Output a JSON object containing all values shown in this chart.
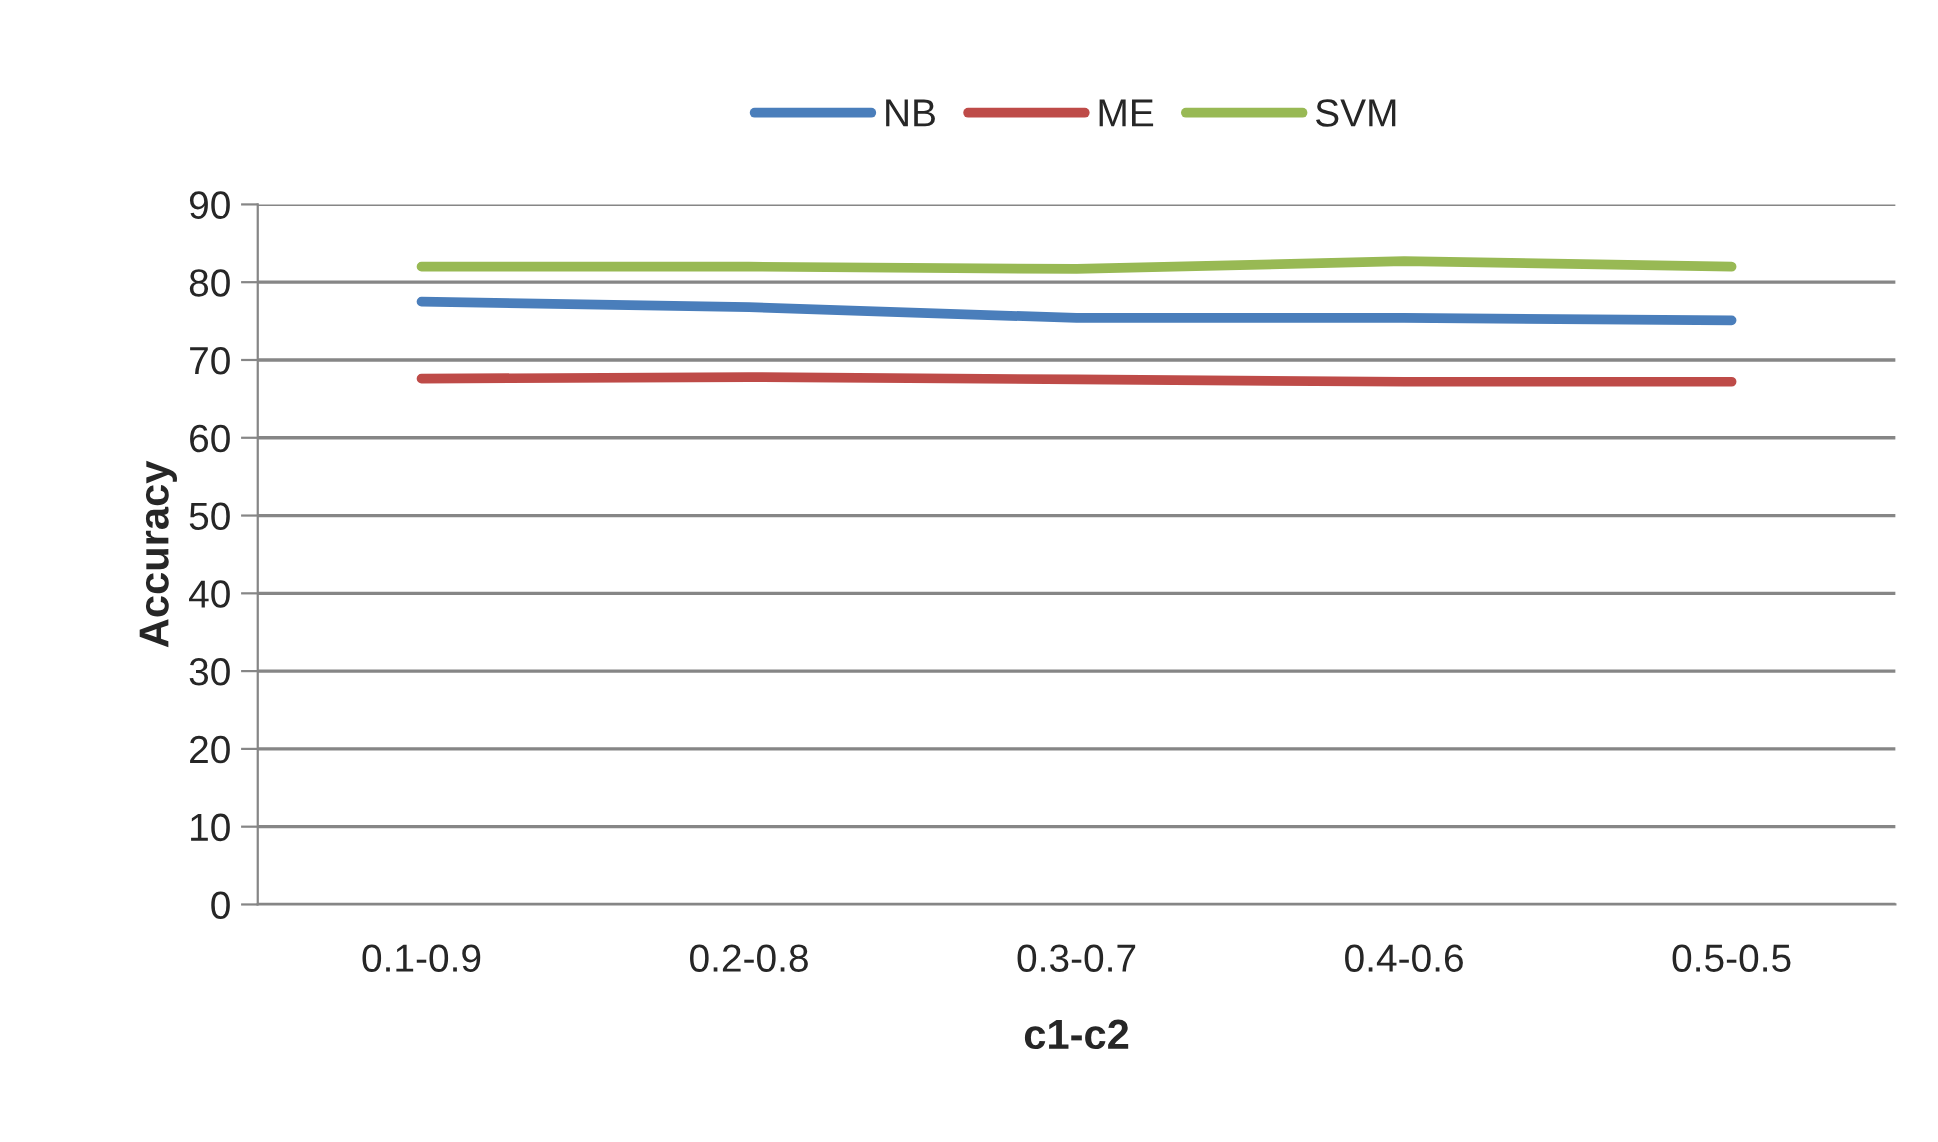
{
  "chart_data": {
    "type": "line",
    "xlabel": "c1-c2",
    "ylabel": "Accuracy",
    "categories": [
      "0.1-0.9",
      "0.2-0.8",
      "0.3-0.7",
      "0.4-0.6",
      "0.5-0.5"
    ],
    "series": [
      {
        "name": "NB",
        "color": "#4a7ebb",
        "values": [
          77.5,
          76.8,
          75.4,
          75.4,
          75.1
        ]
      },
      {
        "name": "ME",
        "color": "#be4b48",
        "values": [
          67.6,
          67.8,
          67.5,
          67.2,
          67.2
        ]
      },
      {
        "name": "SVM",
        "color": "#98b954",
        "values": [
          82,
          82,
          81.7,
          82.7,
          82
        ]
      }
    ],
    "ylim": [
      0,
      90
    ],
    "yticks": [
      0,
      10,
      20,
      30,
      40,
      50,
      60,
      70,
      80,
      90
    ],
    "grid": "y",
    "legend": "top",
    "marker": "none",
    "line_style": "solid"
  }
}
